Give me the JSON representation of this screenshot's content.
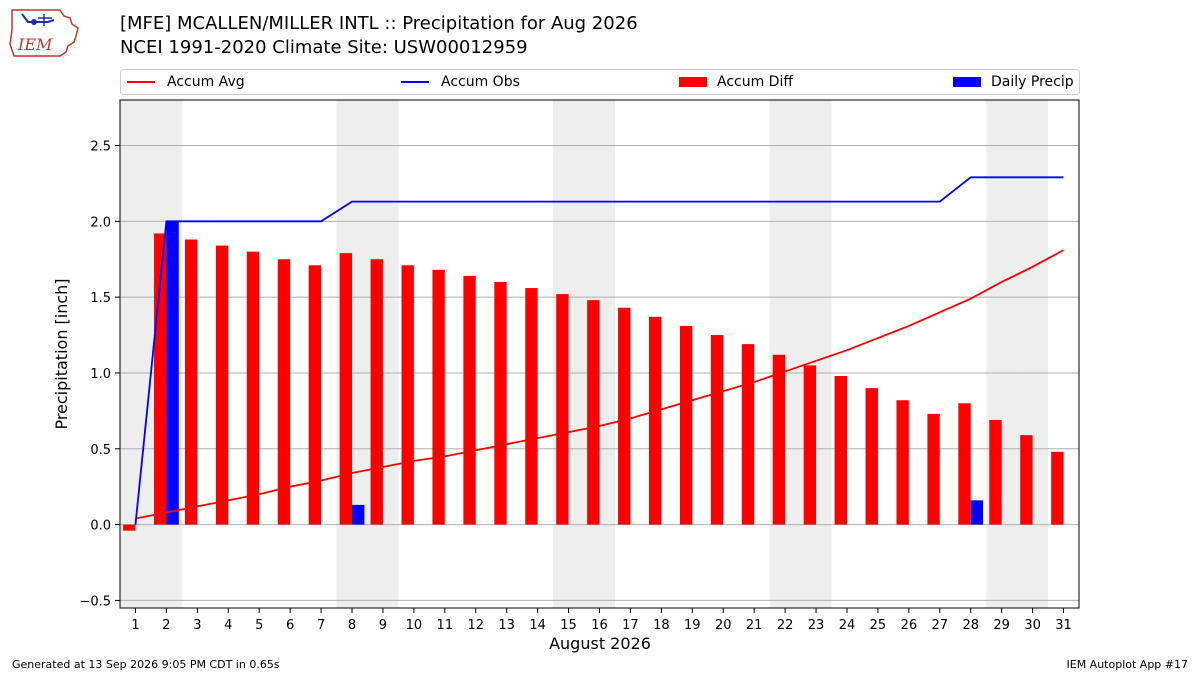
{
  "title_line1": "[MFE] MCALLEN/MILLER INTL :: Precipitation for Aug 2026",
  "title_line2": "NCEI 1991-2020 Climate Site: USW00012959",
  "logo_text": "IEM",
  "footer_left": "Generated at 13 Sep 2026 9:05 PM CDT in 0.65s",
  "footer_right": "IEM Autoplot App #17",
  "colors": {
    "avg": "#ff0000",
    "obs": "#0000ff",
    "diff": "#ff0000",
    "daily": "#0000ff",
    "weekend": "#eeeeee",
    "grid": "#b0b0b0"
  },
  "chart_data": {
    "type": "bar",
    "xlabel": "August 2026",
    "ylabel": "Precipitation [inch]",
    "ylim": [
      -0.55,
      2.8
    ],
    "yticks": [
      -0.5,
      0.0,
      0.5,
      1.0,
      1.5,
      2.0,
      2.5
    ],
    "ytick_labels": [
      "−0.5",
      "0.0",
      "0.5",
      "1.0",
      "1.5",
      "2.0",
      "2.5"
    ],
    "grid": true,
    "legend_position": "top",
    "days": [
      1,
      2,
      3,
      4,
      5,
      6,
      7,
      8,
      9,
      10,
      11,
      12,
      13,
      14,
      15,
      16,
      17,
      18,
      19,
      20,
      21,
      22,
      23,
      24,
      25,
      26,
      27,
      28,
      29,
      30,
      31
    ],
    "weekend_days": [
      1,
      2,
      8,
      9,
      15,
      16,
      22,
      23,
      29,
      30
    ],
    "series": [
      {
        "name": "Accum Avg",
        "kind": "line",
        "values": [
          0.04,
          0.08,
          0.12,
          0.16,
          0.2,
          0.25,
          0.29,
          0.34,
          0.38,
          0.42,
          0.45,
          0.49,
          0.53,
          0.57,
          0.61,
          0.65,
          0.7,
          0.76,
          0.82,
          0.88,
          0.94,
          1.01,
          1.08,
          1.15,
          1.23,
          1.31,
          1.4,
          1.49,
          1.6,
          1.7,
          1.81
        ]
      },
      {
        "name": "Accum Obs",
        "kind": "line",
        "values": [
          0.0,
          2.0,
          2.0,
          2.0,
          2.0,
          2.0,
          2.0,
          2.13,
          2.13,
          2.13,
          2.13,
          2.13,
          2.13,
          2.13,
          2.13,
          2.13,
          2.13,
          2.13,
          2.13,
          2.13,
          2.13,
          2.13,
          2.13,
          2.13,
          2.13,
          2.13,
          2.13,
          2.29,
          2.29,
          2.29,
          2.29
        ]
      },
      {
        "name": "Accum Diff",
        "kind": "bar",
        "values": [
          -0.04,
          1.92,
          1.88,
          1.84,
          1.8,
          1.75,
          1.71,
          1.79,
          1.75,
          1.71,
          1.68,
          1.64,
          1.6,
          1.56,
          1.52,
          1.48,
          1.43,
          1.37,
          1.31,
          1.25,
          1.19,
          1.12,
          1.05,
          0.98,
          0.9,
          0.82,
          0.73,
          0.8,
          0.69,
          0.59,
          0.48
        ]
      },
      {
        "name": "Daily Precip",
        "kind": "bar",
        "values": [
          0,
          2.0,
          0,
          0,
          0,
          0,
          0,
          0.13,
          0,
          0,
          0,
          0,
          0,
          0,
          0,
          0,
          0,
          0,
          0,
          0,
          0,
          0,
          0,
          0,
          0,
          0,
          0,
          0.16,
          0,
          0,
          0
        ]
      }
    ]
  }
}
